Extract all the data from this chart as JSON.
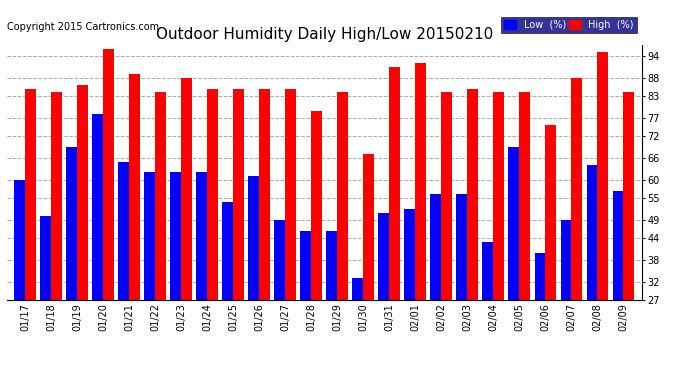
{
  "title": "Outdoor Humidity Daily High/Low 20150210",
  "copyright": "Copyright 2015 Cartronics.com",
  "legend_low_label": "Low  (%)",
  "legend_high_label": "High  (%)",
  "dates": [
    "01/17",
    "01/18",
    "01/19",
    "01/20",
    "01/21",
    "01/22",
    "01/23",
    "01/24",
    "01/25",
    "01/26",
    "01/27",
    "01/28",
    "01/29",
    "01/30",
    "01/31",
    "02/01",
    "02/02",
    "02/03",
    "02/04",
    "02/05",
    "02/06",
    "02/07",
    "02/08",
    "02/09"
  ],
  "high_values": [
    85,
    84,
    86,
    96,
    89,
    84,
    88,
    85,
    85,
    85,
    85,
    79,
    84,
    67,
    91,
    92,
    84,
    85,
    84,
    84,
    75,
    88,
    95,
    84
  ],
  "low_values": [
    60,
    50,
    69,
    78,
    65,
    62,
    62,
    62,
    54,
    61,
    49,
    46,
    46,
    33,
    51,
    52,
    56,
    56,
    43,
    69,
    40,
    49,
    64,
    57
  ],
  "ylim_min": 27,
  "ylim_max": 97,
  "yticks": [
    27,
    32,
    38,
    44,
    49,
    55,
    60,
    66,
    72,
    77,
    83,
    88,
    94
  ],
  "bar_width": 0.42,
  "high_color": "#ff0000",
  "low_color": "#0000ff",
  "background_color": "#ffffff",
  "grid_color": "#aaaaaa",
  "title_fontsize": 11,
  "copyright_fontsize": 7,
  "tick_fontsize": 7,
  "legend_fontsize": 7
}
